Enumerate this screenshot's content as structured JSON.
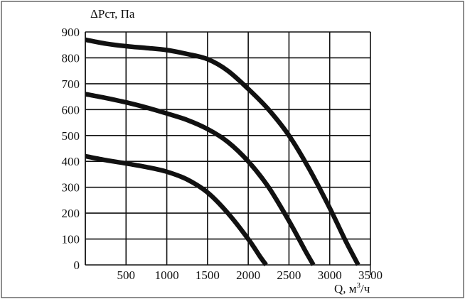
{
  "chart_data": {
    "type": "line",
    "ylabel": "ΔPст, Па",
    "xlabel_main": "Q, м",
    "xlabel_sup": "3",
    "xlabel_tail": "/ч",
    "xlim": [
      0,
      3500
    ],
    "ylim": [
      0,
      900
    ],
    "x_ticks": [
      500,
      1000,
      1500,
      2000,
      2500,
      3000,
      3500
    ],
    "y_ticks": [
      0,
      100,
      200,
      300,
      400,
      500,
      600,
      700,
      800,
      900
    ],
    "grid": true,
    "series": [
      {
        "x": [
          0,
          250,
          500,
          750,
          1000,
          1250,
          1500,
          1750,
          2000,
          2250,
          2500,
          2750,
          3000,
          3200,
          3350
        ],
        "values": [
          870,
          855,
          845,
          838,
          830,
          815,
          795,
          750,
          680,
          600,
          500,
          370,
          220,
          90,
          0
        ]
      },
      {
        "x": [
          0,
          250,
          500,
          750,
          1000,
          1250,
          1500,
          1750,
          2000,
          2250,
          2500,
          2700,
          2800
        ],
        "values": [
          660,
          645,
          628,
          608,
          585,
          560,
          525,
          475,
          400,
          300,
          170,
          55,
          0
        ]
      },
      {
        "x": [
          0,
          250,
          500,
          750,
          1000,
          1250,
          1500,
          1750,
          2000,
          2150,
          2220
        ],
        "values": [
          420,
          405,
          392,
          378,
          360,
          330,
          280,
          200,
          100,
          30,
          0
        ]
      }
    ]
  }
}
